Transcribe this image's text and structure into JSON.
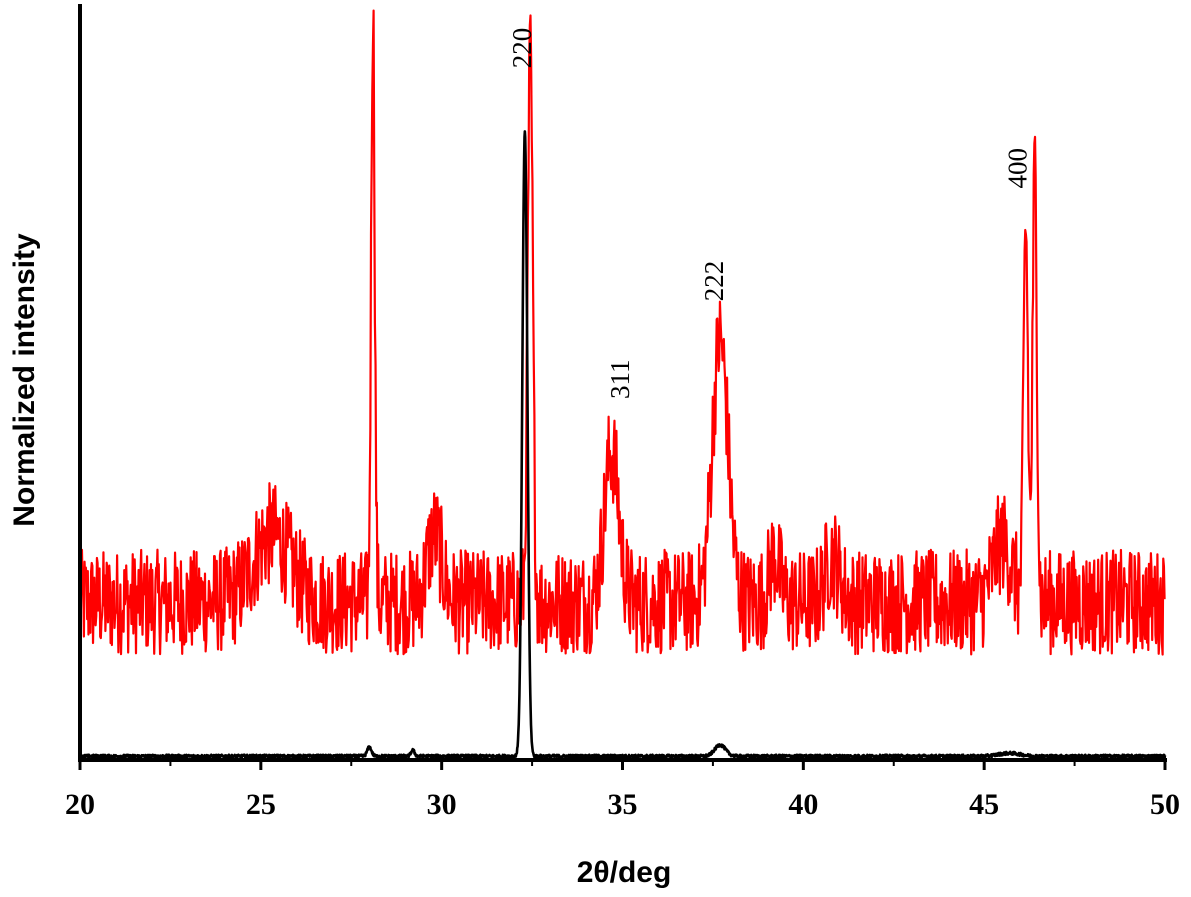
{
  "chart_data": {
    "type": "line",
    "title": "",
    "xlabel": "2θ/deg",
    "ylabel": "Normalized intensity",
    "xlim": [
      20,
      50
    ],
    "xticks": [
      20,
      25,
      30,
      35,
      40,
      45,
      50
    ],
    "ylim": [
      0,
      1.0
    ],
    "yticks": [],
    "grid": false,
    "legend": "none",
    "series": [
      {
        "color": "#ff0000",
        "noise": {
          "baseline": 0.21,
          "amplitude": 0.07
        },
        "features": [
          {
            "x": 25.3,
            "height": 0.09,
            "width": 0.5
          },
          {
            "x": 28.1,
            "height": 0.79,
            "width": 0.05
          },
          {
            "x": 29.8,
            "height": 0.09,
            "width": 0.2
          },
          {
            "x": 32.45,
            "height": 0.73,
            "width": 0.07
          },
          {
            "x": 34.7,
            "height": 0.2,
            "width": 0.2
          },
          {
            "x": 37.7,
            "height": 0.35,
            "width": 0.22
          },
          {
            "x": 39.2,
            "height": 0.06,
            "width": 0.15
          },
          {
            "x": 40.8,
            "height": 0.06,
            "width": 0.2
          },
          {
            "x": 45.5,
            "height": 0.08,
            "width": 0.25
          },
          {
            "x": 46.15,
            "height": 0.5,
            "width": 0.06
          },
          {
            "x": 46.4,
            "height": 0.58,
            "width": 0.06
          }
        ]
      },
      {
        "color": "#000000",
        "baseline": 0.005,
        "features": [
          {
            "x": 28.0,
            "height": 0.012,
            "width": 0.06
          },
          {
            "x": 29.2,
            "height": 0.008,
            "width": 0.05
          },
          {
            "x": 32.3,
            "height": 0.83,
            "width": 0.07
          },
          {
            "x": 37.7,
            "height": 0.015,
            "width": 0.15
          },
          {
            "x": 45.7,
            "height": 0.004,
            "width": 0.3
          }
        ]
      }
    ],
    "annotations": [
      {
        "text": "220",
        "x": 32.2,
        "y": 0.92
      },
      {
        "text": "311",
        "x": 34.9,
        "y": 0.48
      },
      {
        "text": "222",
        "x": 37.5,
        "y": 0.61
      },
      {
        "text": "400",
        "x": 45.9,
        "y": 0.76
      }
    ]
  }
}
